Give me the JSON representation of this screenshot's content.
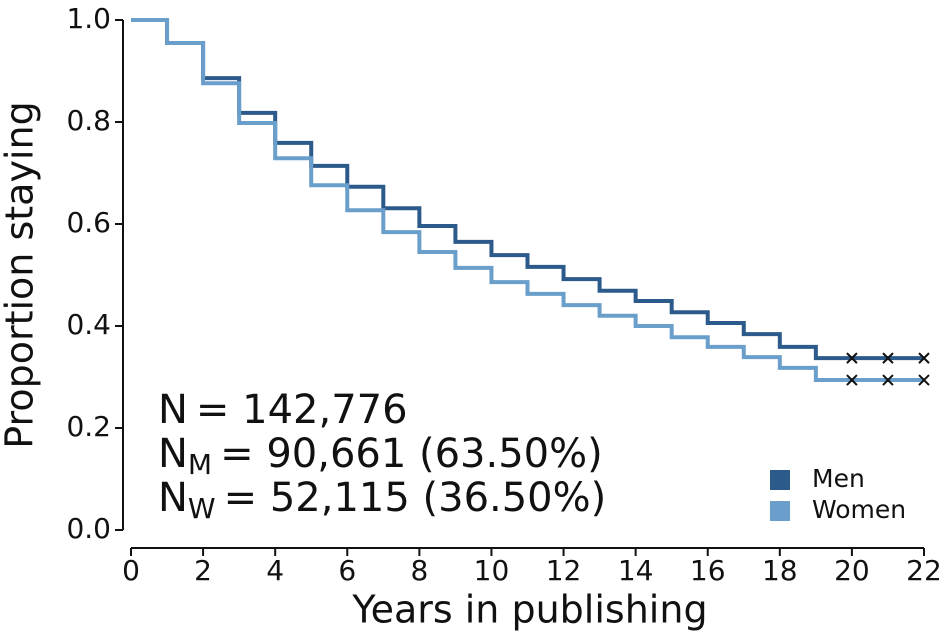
{
  "chart_data": {
    "type": "step",
    "x_label": "Years in publishing",
    "y_label": "Proportion staying",
    "x": [
      0,
      1,
      2,
      3,
      4,
      5,
      6,
      7,
      8,
      9,
      10,
      11,
      12,
      13,
      14,
      15,
      16,
      17,
      18,
      19,
      20,
      21,
      22
    ],
    "series": [
      {
        "name": "Men",
        "color": "#2c5a8a",
        "values": [
          1.0,
          0.955,
          0.886,
          0.818,
          0.759,
          0.714,
          0.673,
          0.631,
          0.596,
          0.565,
          0.539,
          0.516,
          0.492,
          0.469,
          0.449,
          0.427,
          0.406,
          0.384,
          0.359,
          0.337,
          0.337,
          0.337,
          0.337
        ]
      },
      {
        "name": "Women",
        "color": "#6a9ecb",
        "values": [
          1.0,
          0.955,
          0.876,
          0.798,
          0.729,
          0.676,
          0.627,
          0.584,
          0.545,
          0.514,
          0.486,
          0.463,
          0.441,
          0.42,
          0.4,
          0.378,
          0.359,
          0.339,
          0.318,
          0.294,
          0.294,
          0.294,
          0.294
        ]
      }
    ],
    "censor_x": [
      20,
      21,
      22
    ],
    "xlim": [
      0,
      22
    ],
    "xticks": [
      0,
      2,
      4,
      6,
      8,
      10,
      12,
      14,
      16,
      18,
      20,
      22
    ],
    "ylim": [
      0,
      1
    ],
    "yticks": [
      {
        "value": 0,
        "label": "0.0"
      },
      0.2,
      0.4,
      0.6,
      0.8,
      {
        "value": 1,
        "label": "1.0"
      }
    ],
    "legend": "lower right",
    "annotations": [
      {
        "symbol": "N",
        "text": "= 142,776"
      },
      {
        "symbol": "N",
        "subscript": "M",
        "text": "= 90,661 (63.50%)"
      },
      {
        "symbol": "N",
        "subscript": "W",
        "text": "= 52,115 (36.50%)"
      }
    ]
  }
}
